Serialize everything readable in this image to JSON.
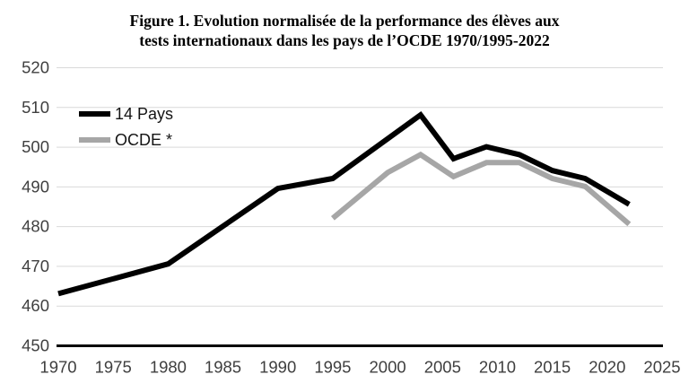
{
  "figure": {
    "title_line1": "Figure 1. Evolution normalisée de la performance des élèves aux",
    "title_line2": "tests internationaux dans les pays de l’OCDE 1970/1995-2022"
  },
  "chart_data": {
    "type": "line",
    "title": "Figure 1. Evolution normalisée de la performance des élèves aux tests internationaux dans les pays de l’OCDE 1970/1995-2022",
    "xlabel": "",
    "ylabel": "",
    "grid": "horizontal-gridlines-on",
    "legend_position": "inside-top-left",
    "x_axis": {
      "min": 1970,
      "max": 2025,
      "tick_step": 5,
      "ticks": [
        "1970",
        "1975",
        "1980",
        "1985",
        "1990",
        "1995",
        "2000",
        "2005",
        "2010",
        "2015",
        "2020",
        "2025"
      ]
    },
    "y_axis": {
      "min": 450,
      "max": 520,
      "tick_step": 10,
      "ticks": [
        "450",
        "460",
        "470",
        "480",
        "490",
        "500",
        "510",
        "520"
      ]
    },
    "series": [
      {
        "name": "14 Pays",
        "color": "#000000",
        "line_width": 6,
        "points": [
          [
            1970,
            463
          ],
          [
            1980,
            470.5
          ],
          [
            1990,
            489.5
          ],
          [
            1995,
            492
          ],
          [
            2000,
            502
          ],
          [
            2003,
            508
          ],
          [
            2006,
            497
          ],
          [
            2009,
            500
          ],
          [
            2012,
            498
          ],
          [
            2015,
            494
          ],
          [
            2018,
            492
          ],
          [
            2022,
            485.5
          ]
        ]
      },
      {
        "name": "OCDE *",
        "color": "#a6a6a6",
        "line_width": 6,
        "points": [
          [
            1995,
            482
          ],
          [
            2000,
            493.5
          ],
          [
            2003,
            498
          ],
          [
            2006,
            492.5
          ],
          [
            2009,
            496
          ],
          [
            2012,
            496
          ],
          [
            2015,
            492
          ],
          [
            2018,
            490
          ],
          [
            2022,
            480.5
          ]
        ]
      }
    ]
  },
  "colors": {
    "background": "#ffffff",
    "gridline": "#d9d9d9",
    "axis": "#000000",
    "tick_label": "#3f3f3f"
  }
}
